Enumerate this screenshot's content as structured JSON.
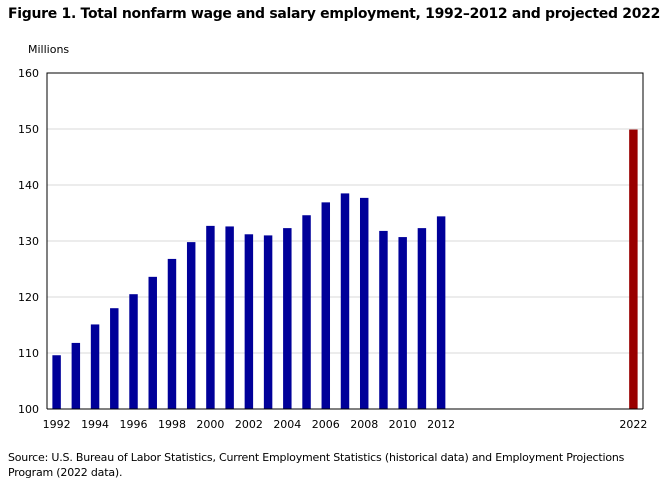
{
  "chart_data": {
    "type": "bar",
    "title": "Figure 1. Total nonfarm wage and salary employment, 1992–2012 and projected 2022",
    "ylabel": "Millions",
    "xlabel": "",
    "ylim": [
      100,
      160
    ],
    "yticks": [
      100,
      110,
      120,
      130,
      140,
      150,
      160
    ],
    "xtick_labels": [
      "1992",
      "1994",
      "1996",
      "1998",
      "2000",
      "2002",
      "2004",
      "2006",
      "2008",
      "2010",
      "2012",
      "2022"
    ],
    "grid": true,
    "legend": "none",
    "x": [
      1992,
      1993,
      1994,
      1995,
      1996,
      1997,
      1998,
      1999,
      2000,
      2001,
      2002,
      2003,
      2004,
      2005,
      2006,
      2007,
      2008,
      2009,
      2010,
      2011,
      2012,
      2022
    ],
    "values": [
      109.6,
      111.8,
      115.1,
      118.0,
      120.5,
      123.6,
      126.8,
      129.8,
      132.7,
      132.6,
      131.2,
      131.0,
      132.3,
      134.6,
      136.9,
      138.5,
      137.7,
      131.8,
      130.7,
      132.3,
      134.4,
      149.9
    ],
    "projected": [
      false,
      false,
      false,
      false,
      false,
      false,
      false,
      false,
      false,
      false,
      false,
      false,
      false,
      false,
      false,
      false,
      false,
      false,
      false,
      false,
      false,
      true
    ],
    "colors": {
      "historical": "#000099",
      "projected": "#990000",
      "grid": "#d9d9d9",
      "axis": "#000000"
    }
  },
  "source": "Source:  U.S. Bureau of Labor Statistics, Current Employment Statistics (historical data) and Employment Projections Program (2022 data)."
}
